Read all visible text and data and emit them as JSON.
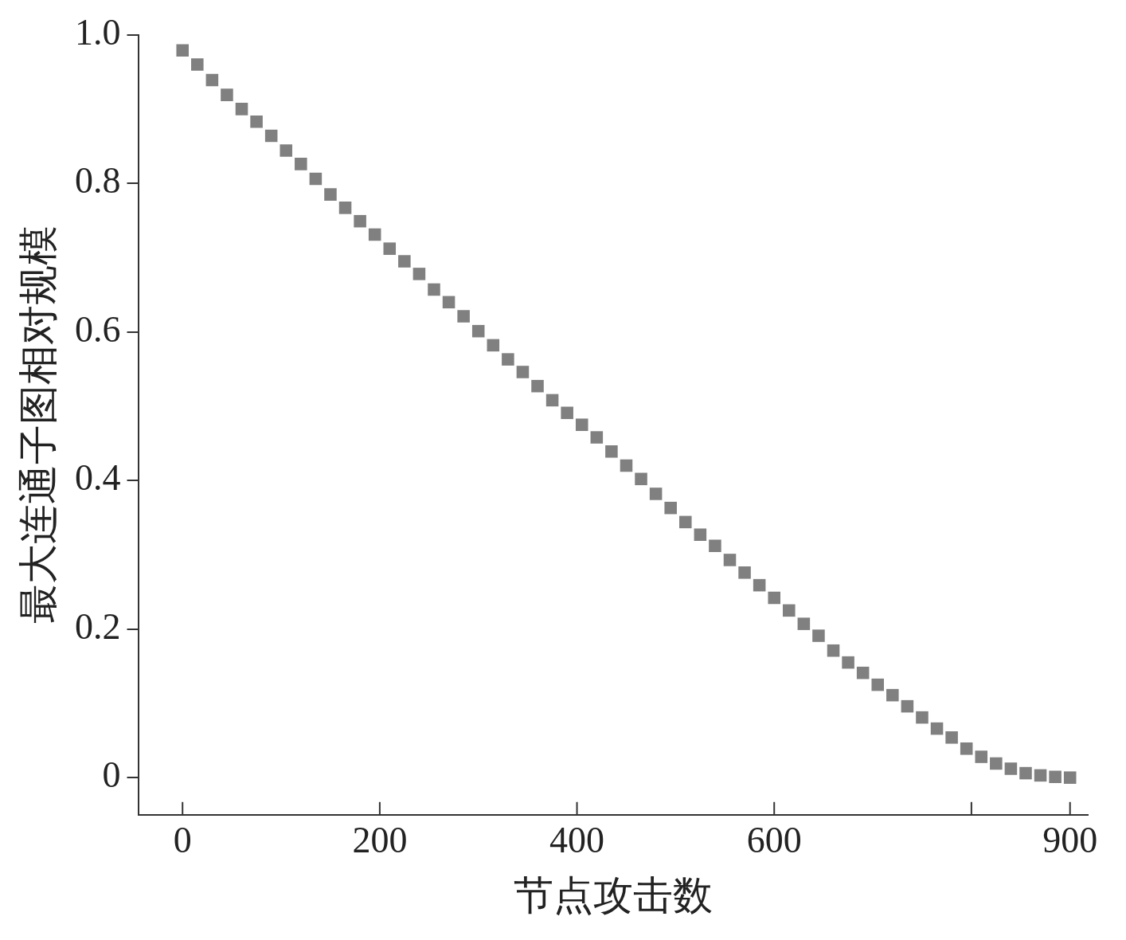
{
  "chart_data": {
    "type": "scatter",
    "xlabel": "节点攻击数",
    "ylabel": "最大连通子图相对规模",
    "marker": "square",
    "grid": false,
    "legend": false,
    "xlim": [
      -45,
      918
    ],
    "xticks": [
      0,
      200,
      400,
      600,
      {
        "value": 800,
        "label": null
      },
      900
    ],
    "ylim": [
      -0.05,
      1.0
    ],
    "yticks": [
      0,
      0.2,
      0.4,
      0.6,
      0.8,
      {
        "value": 1.0,
        "label": "1.0"
      }
    ],
    "x": [
      0,
      15,
      30,
      45,
      60,
      75,
      90,
      105,
      120,
      135,
      150,
      165,
      180,
      195,
      210,
      225,
      240,
      255,
      270,
      285,
      300,
      315,
      330,
      345,
      360,
      375,
      390,
      405,
      420,
      435,
      450,
      465,
      480,
      495,
      510,
      525,
      540,
      555,
      570,
      585,
      600,
      615,
      630,
      645,
      660,
      675,
      690,
      705,
      720,
      735,
      750,
      765,
      780,
      795,
      810,
      825,
      840,
      855,
      870,
      885,
      900
    ],
    "series": [
      {
        "color": "#808080",
        "values": [
          0.979,
          0.96,
          0.939,
          0.919,
          0.9,
          0.883,
          0.864,
          0.844,
          0.826,
          0.806,
          0.785,
          0.767,
          0.749,
          0.731,
          0.712,
          0.695,
          0.678,
          0.657,
          0.64,
          0.621,
          0.601,
          0.582,
          0.563,
          0.546,
          0.527,
          0.508,
          0.491,
          0.475,
          0.458,
          0.439,
          0.42,
          0.402,
          0.382,
          0.363,
          0.344,
          0.327,
          0.312,
          0.293,
          0.276,
          0.259,
          0.242,
          0.225,
          0.207,
          0.191,
          0.171,
          0.155,
          0.141,
          0.125,
          0.111,
          0.096,
          0.081,
          0.066,
          0.054,
          0.039,
          0.028,
          0.019,
          0.012,
          0.006,
          0.003,
          0.001,
          0
        ]
      }
    ]
  }
}
